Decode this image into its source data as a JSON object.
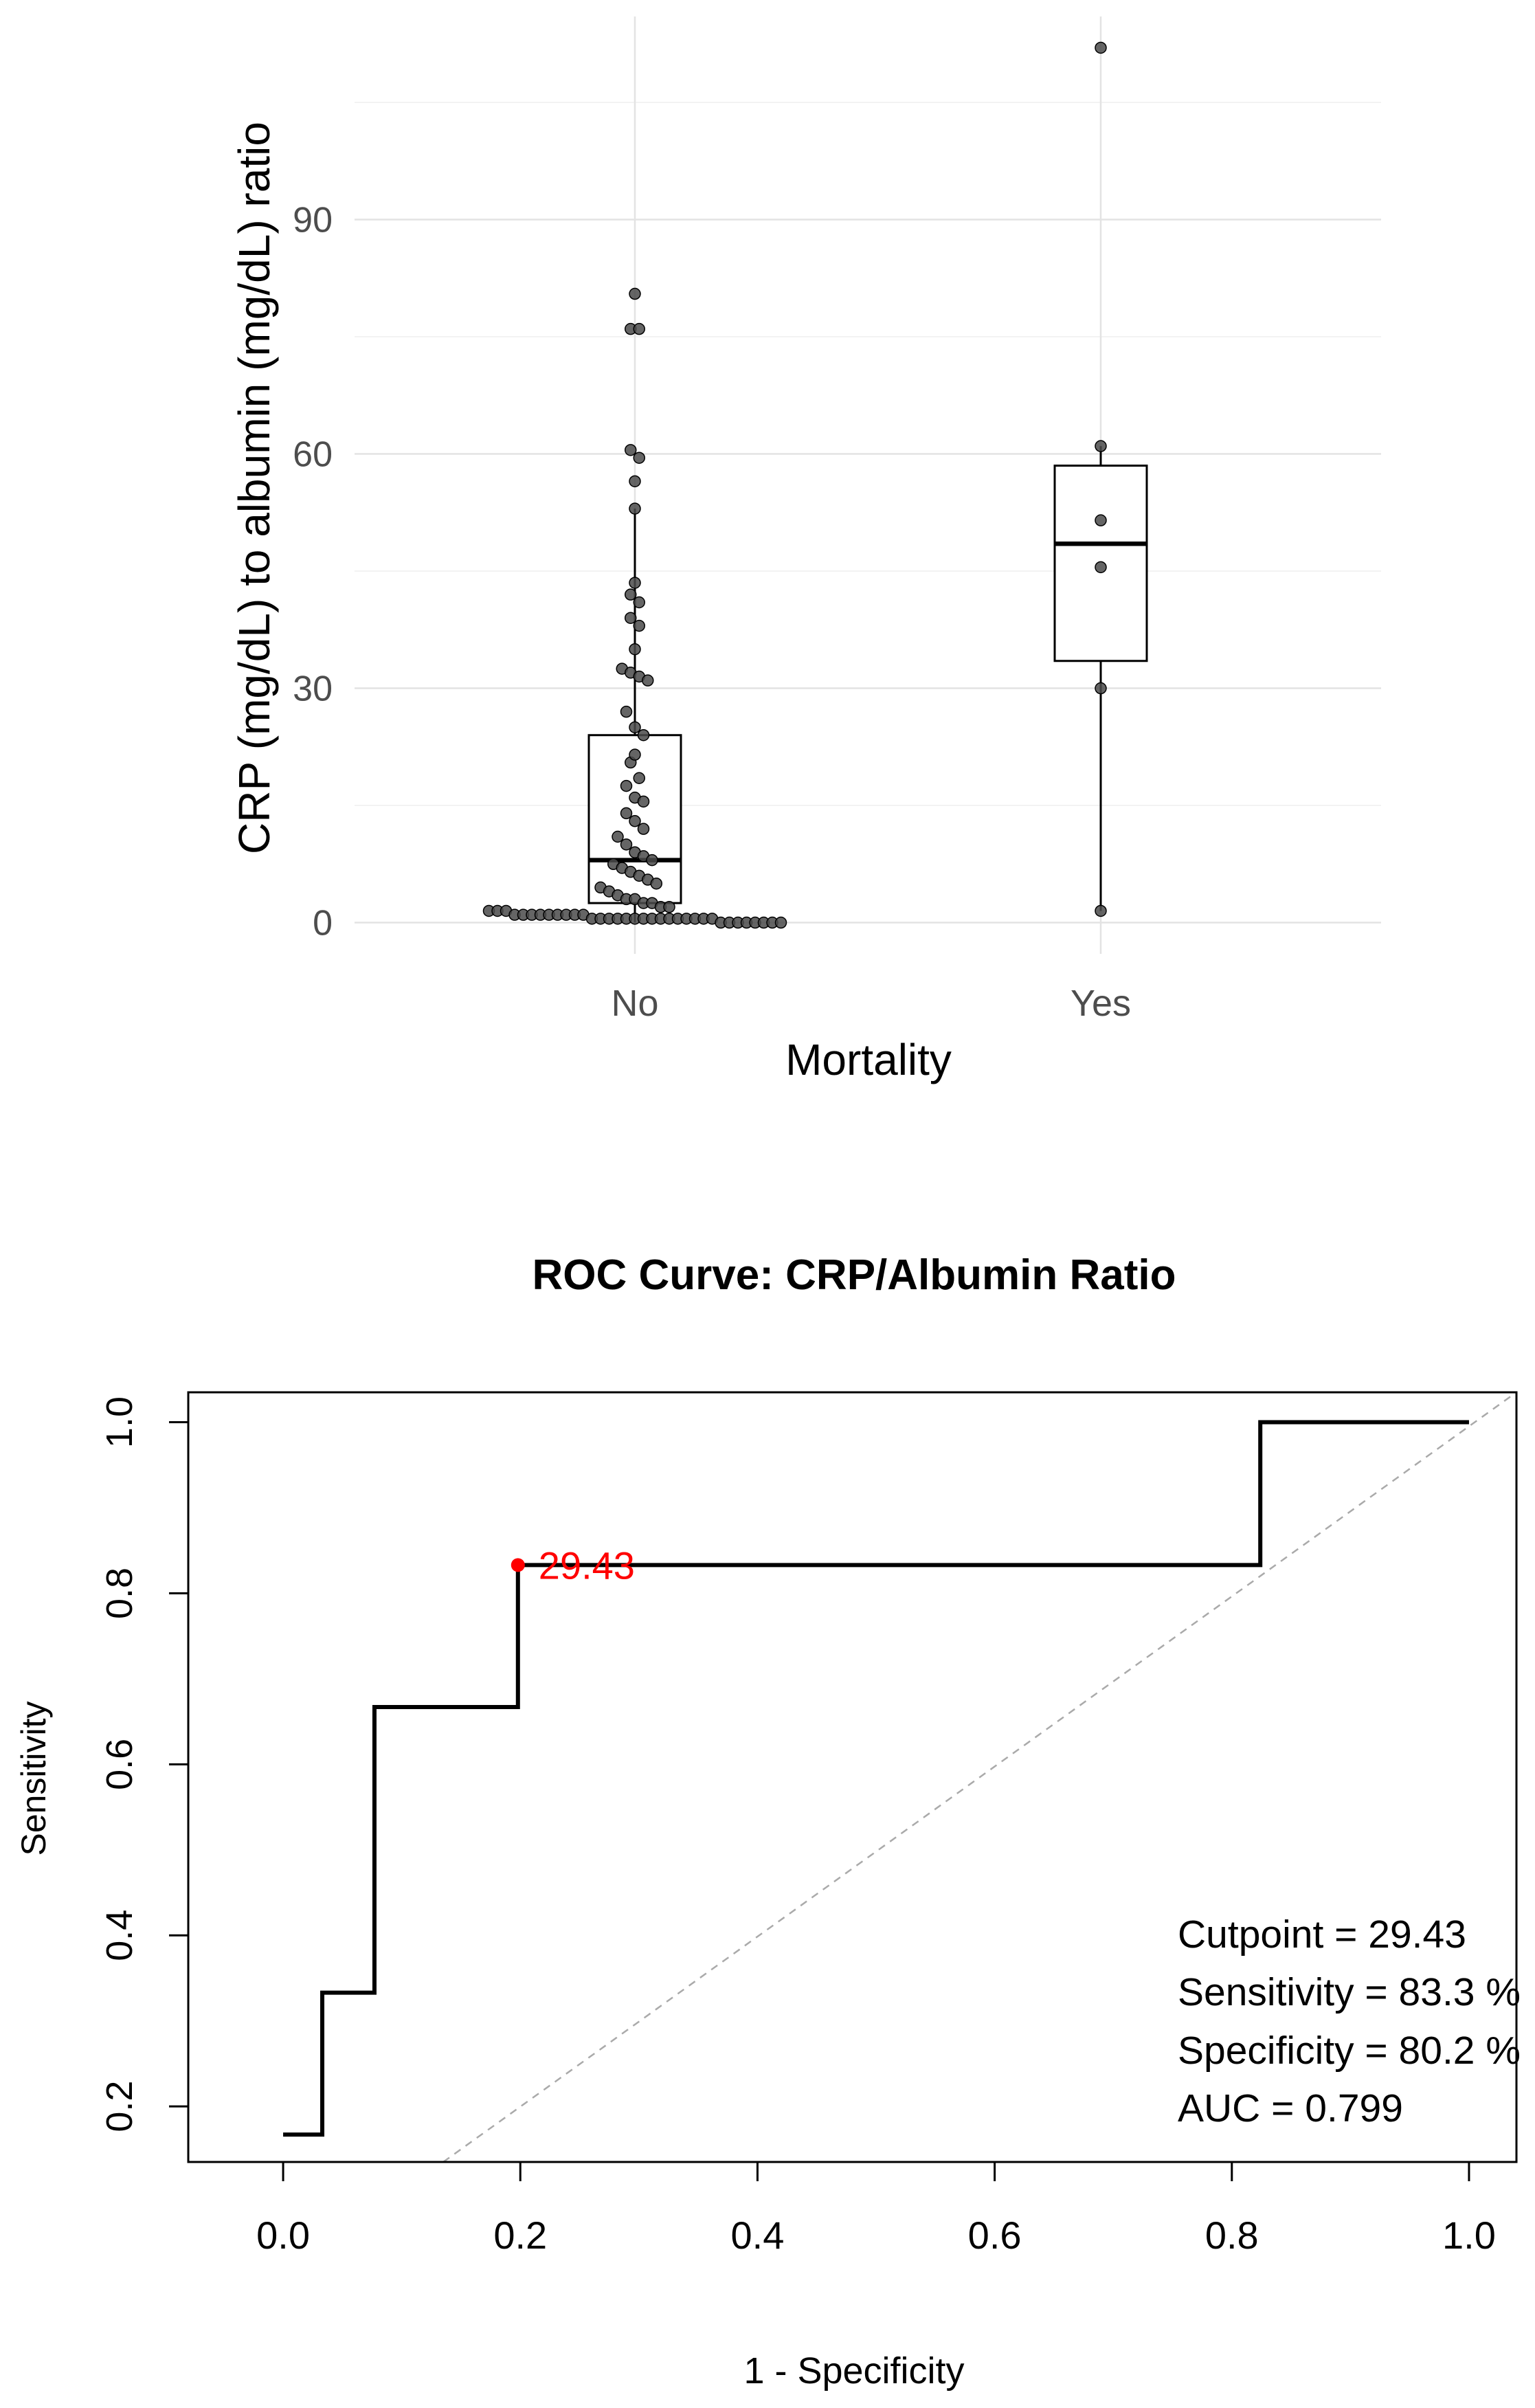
{
  "chart_data": [
    {
      "type": "boxplot",
      "title": "",
      "xlabel": "Mortality",
      "ylabel": "CRP (mg/dL) to albumin (mg/dL) ratio",
      "ylim": [
        -4,
        116
      ],
      "yticks": [
        0,
        30,
        60,
        90
      ],
      "ytick_labels": [
        "0",
        "30",
        "60",
        "90"
      ],
      "grid": true,
      "categories": [
        "No",
        "Yes"
      ],
      "boxes": [
        {
          "category": "No",
          "lower_whisker": 0,
          "q1": 2.5,
          "median": 8,
          "q3": 24,
          "upper_whisker": 53
        },
        {
          "category": "Yes",
          "lower_whisker": 1.5,
          "q1": 33.5,
          "median": 48.5,
          "q3": 58.5,
          "upper_whisker": 61
        }
      ],
      "points": [
        {
          "category": "No",
          "y": [
            80.5,
            76,
            76,
            60.5,
            59.5,
            56.5,
            53,
            43.5,
            42,
            41,
            39,
            38,
            35,
            32.5,
            32,
            31.5,
            31,
            27,
            25,
            24,
            21.5,
            20.5,
            18.5,
            17.5,
            16,
            15.5,
            14,
            13,
            12,
            11,
            10,
            9,
            8.5,
            8,
            7.5,
            7,
            6.5,
            6,
            5.5,
            5,
            4.5,
            4,
            3.5,
            3,
            3,
            2.5,
            2.5,
            2,
            2,
            1.5,
            1.5,
            1.5,
            1,
            1,
            1,
            1,
            1,
            1,
            1,
            1,
            1,
            0.5,
            0.5,
            0.5,
            0.5,
            0.5,
            0.5,
            0.5,
            0.5,
            0.5,
            0.5,
            0.5,
            0.5,
            0.5,
            0.5,
            0.5,
            0,
            0,
            0,
            0,
            0,
            0,
            0,
            0
          ]
        },
        {
          "category": "Yes",
          "y": [
            112,
            61,
            51.5,
            45.5,
            30,
            1.5
          ]
        }
      ]
    },
    {
      "type": "line",
      "title": "ROC Curve: CRP/Albumin Ratio",
      "xlabel": "1 - Specificity",
      "ylabel": "Sensitivity",
      "xlim": [
        -0.08,
        1.04
      ],
      "ylim": [
        0.135,
        1.035
      ],
      "xticks": [
        0,
        0.2,
        0.4,
        0.6,
        0.8,
        1.0
      ],
      "xtick_labels": [
        "0.0",
        "0.2",
        "0.4",
        "0.6",
        "0.8",
        "1.0"
      ],
      "yticks": [
        0.2,
        0.4,
        0.6,
        0.8,
        1.0
      ],
      "ytick_labels": [
        "0.2",
        "0.4",
        "0.6",
        "0.8",
        "1.0"
      ],
      "series": [
        {
          "name": "ROC",
          "x": [
            0,
            0.033,
            0.033,
            0.077,
            0.077,
            0.198,
            0.198,
            0.824,
            0.824,
            1.0
          ],
          "y": [
            0.167,
            0.167,
            0.333,
            0.333,
            0.667,
            0.667,
            0.833,
            0.833,
            1.0,
            1.0
          ]
        }
      ],
      "reference_line": {
        "x": [
          0,
          1.04
        ],
        "y": [
          0,
          1.04
        ]
      },
      "cutpoint": {
        "x": 0.198,
        "y": 0.833,
        "label": "29.43",
        "color": "#ff0000"
      },
      "annotations": [
        "Cutpoint = 29.43",
        "Sensitivity = 83.3 %",
        "Specificity = 80.2 %",
        "AUC = 0.799"
      ]
    }
  ]
}
